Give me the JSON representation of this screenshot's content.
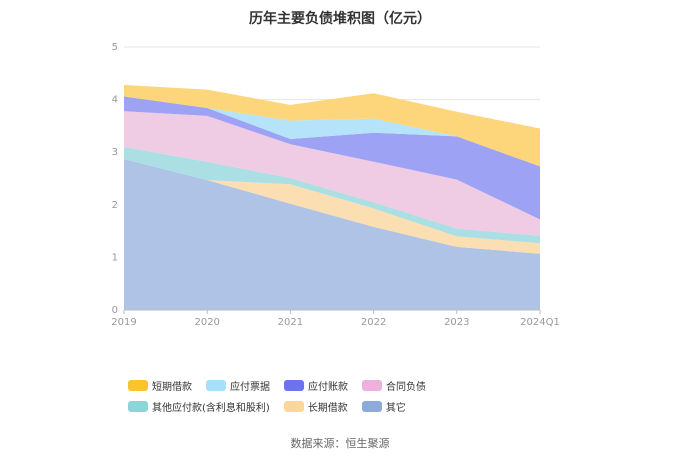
{
  "chart_data": {
    "type": "area",
    "stacked": true,
    "title": "历年主要负债堆积图（亿元）",
    "categories": [
      "2019",
      "2020",
      "2021",
      "2022",
      "2023",
      "2024Q1"
    ],
    "yticks": [
      "0",
      "1",
      "2",
      "3",
      "4",
      "5"
    ],
    "ylim": [
      0,
      5
    ],
    "grid": true,
    "legend_position": "bottom",
    "series": [
      {
        "name": "其它",
        "color": "#aec3e6",
        "values": [
          2.87,
          2.47,
          2.02,
          1.58,
          1.2,
          1.07
        ]
      },
      {
        "name": "长期借款",
        "color": "#fbdfb2",
        "values": [
          0.0,
          0.0,
          0.37,
          0.35,
          0.2,
          0.2
        ]
      },
      {
        "name": "其他应付款(含利息和股利)",
        "color": "#acdfe3",
        "values": [
          0.23,
          0.35,
          0.12,
          0.12,
          0.15,
          0.14
        ]
      },
      {
        "name": "合同负债",
        "color": "#f0cce4",
        "values": [
          0.68,
          0.87,
          0.64,
          0.77,
          0.93,
          0.31
        ]
      },
      {
        "name": "应付账款",
        "color": "#9ea2f5",
        "values": [
          0.28,
          0.15,
          0.1,
          0.55,
          0.82,
          1.01
        ]
      },
      {
        "name": "应付票据",
        "color": "#b4e3fa",
        "values": [
          0.0,
          0.0,
          0.35,
          0.27,
          0.0,
          0.0
        ]
      },
      {
        "name": "短期借款",
        "color": "#fdd67b",
        "values": [
          0.22,
          0.35,
          0.3,
          0.48,
          0.47,
          0.72
        ]
      }
    ],
    "source": "数据来源：恒生聚源"
  }
}
